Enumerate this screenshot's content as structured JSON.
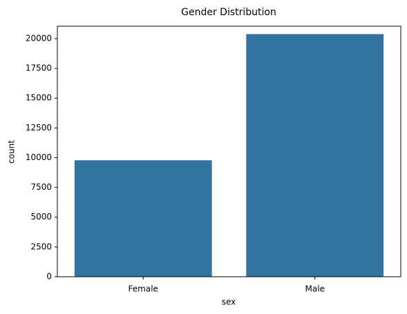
{
  "chart_data": {
    "type": "bar",
    "title": "Gender Distribution",
    "x_label": "sex",
    "y_label": "count",
    "categories": [
      "Female",
      "Male"
    ],
    "values": [
      9782,
      20380
    ],
    "color": "#3274a1",
    "ylim": [
      0,
      21040
    ],
    "yticks": [
      0,
      2500,
      5000,
      7500,
      10000,
      12500,
      15000,
      17500,
      20000
    ],
    "grid": false
  }
}
